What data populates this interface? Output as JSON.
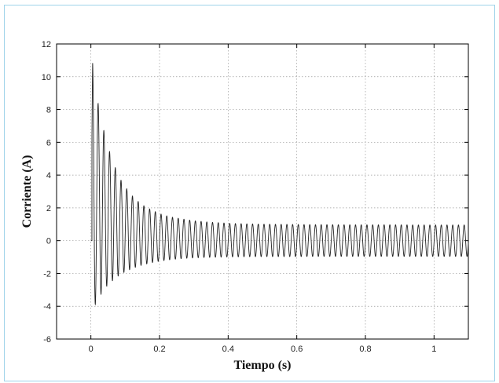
{
  "chart_data": {
    "type": "line",
    "title": "",
    "xlabel": "Tiempo (s)",
    "ylabel": "Corriente (A)",
    "xlim": [
      -0.1,
      1.1
    ],
    "ylim": [
      -6,
      12
    ],
    "xticks": [
      0,
      0.2,
      0.4,
      0.6,
      0.8,
      1
    ],
    "xtick_labels": [
      "0",
      "0.2",
      "0.4",
      "0.6",
      "0.8",
      "1"
    ],
    "yticks": [
      -6,
      -4,
      -2,
      0,
      2,
      4,
      6,
      8,
      10,
      12
    ],
    "ytick_labels": [
      "-6",
      "-4",
      "-2",
      "0",
      "2",
      "4",
      "6",
      "8",
      "10",
      "12"
    ],
    "grid": true,
    "series": [
      {
        "line_color": "#222222",
        "x": [
          0.0,
          0.005,
          0.01,
          0.015,
          0.02,
          0.025,
          0.03,
          0.035,
          0.04,
          0.045,
          0.05,
          0.055,
          0.06,
          0.065,
          0.07,
          0.075,
          0.08,
          0.085,
          0.09,
          0.095,
          0.1,
          0.11,
          0.12,
          0.13,
          0.14,
          0.15,
          0.16,
          0.17,
          0.18,
          0.19,
          0.2,
          0.22,
          0.24,
          0.26,
          0.28,
          0.3,
          0.32,
          0.34,
          0.36,
          0.38,
          0.4,
          0.45,
          0.5,
          0.55,
          0.6,
          0.65,
          0.7,
          0.75,
          0.8,
          0.85,
          0.9,
          0.95,
          1.0,
          1.05,
          1.1
        ],
        "upper_envelope": [
          0.0,
          11.0,
          10.6,
          8.8,
          8.5,
          7.9,
          7.4,
          7.0,
          6.5,
          6.1,
          5.8,
          5.4,
          5.1,
          4.8,
          4.5,
          4.3,
          4.0,
          3.8,
          3.6,
          3.45,
          3.3,
          3.0,
          2.75,
          2.55,
          2.35,
          2.2,
          2.05,
          1.95,
          1.85,
          1.75,
          1.65,
          1.52,
          1.42,
          1.35,
          1.28,
          1.22,
          1.18,
          1.14,
          1.11,
          1.09,
          1.06,
          1.03,
          1.01,
          1.0,
          0.99,
          0.98,
          0.98,
          0.97,
          0.97,
          0.97,
          0.97,
          0.96,
          0.96,
          0.96,
          0.96
        ],
        "lower_envelope": [
          0.0,
          0.0,
          -4.0,
          -3.8,
          -3.6,
          -3.4,
          -3.25,
          -3.1,
          -2.95,
          -2.8,
          -2.7,
          -2.6,
          -2.5,
          -2.4,
          -2.3,
          -2.22,
          -2.15,
          -2.08,
          -2.0,
          -1.95,
          -1.9,
          -1.8,
          -1.7,
          -1.62,
          -1.55,
          -1.48,
          -1.43,
          -1.38,
          -1.33,
          -1.29,
          -1.25,
          -1.19,
          -1.14,
          -1.1,
          -1.07,
          -1.05,
          -1.03,
          -1.02,
          -1.01,
          -1.0,
          -0.99,
          -0.98,
          -0.97,
          -0.97,
          -0.97,
          -0.96,
          -0.96,
          -0.96,
          -0.96,
          -0.96,
          -0.96,
          -0.96,
          -0.96,
          -0.96,
          -0.96
        ],
        "oscillation_frequency_hz": 60
      }
    ]
  }
}
